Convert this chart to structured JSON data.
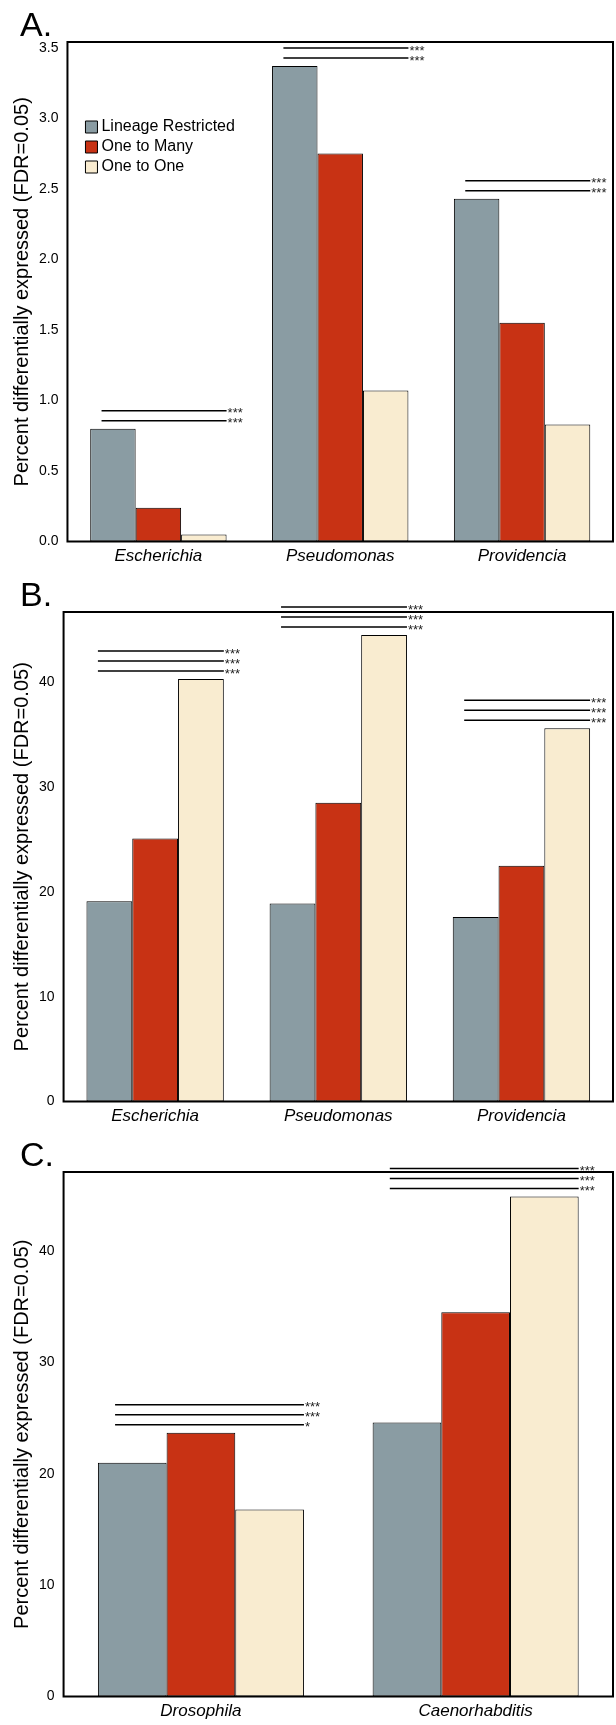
{
  "chart_data": [
    {
      "type": "bar",
      "title": "A.",
      "ylabel": "Percent differentially expressed (FDR=0.05)",
      "categories": [
        "Escherichia",
        "Pseudomonas",
        "Providencia"
      ],
      "series": [
        {
          "name": "Lineage Restricted",
          "color": "#8a9ca3",
          "values": [
            0.8,
            3.37,
            2.43
          ]
        },
        {
          "name": "One to Many",
          "color": "#c83214",
          "values": [
            0.24,
            2.75,
            1.55
          ]
        },
        {
          "name": "One to One",
          "color": "#f9ecd0",
          "values": [
            0.05,
            1.07,
            0.83
          ]
        }
      ],
      "ylim": [
        0,
        3.54
      ],
      "yticks": [
        {
          "value": 0,
          "label": "0.0"
        },
        0.5,
        {
          "value": 1,
          "label": "1.0"
        },
        1.5,
        {
          "value": 2,
          "label": "2.0"
        },
        2.5,
        {
          "value": 3,
          "label": "3.0"
        },
        3.5
      ],
      "legend": "top left",
      "grid": false,
      "annotations": [
        "***",
        "***",
        "***",
        "***",
        "***",
        "***"
      ]
    },
    {
      "type": "bar",
      "title": "B.",
      "ylabel": "Percent differentially expressed (FDR=0.05)",
      "categories": [
        "Escherichia",
        "Pseudomonas",
        "Providencia"
      ],
      "series": [
        {
          "color": "#8a9ca3",
          "values": [
            19.1,
            18.9,
            17.6
          ]
        },
        {
          "color": "#c83214",
          "values": [
            25.1,
            28.5,
            22.5
          ]
        },
        {
          "color": "#f9ecd0",
          "values": [
            40.3,
            44.5,
            35.6
          ]
        }
      ],
      "ylim": [
        0,
        46.7
      ],
      "yticks": [
        0,
        10,
        20,
        30,
        40
      ],
      "grid": false,
      "annotations": [
        "***",
        "***",
        "***",
        "***",
        "***",
        "***",
        "***",
        "***",
        "***"
      ]
    },
    {
      "type": "bar",
      "title": "C.",
      "ylabel": "Percent differentially expressed (FDR=0.05)",
      "categories": [
        "Drosophila",
        "Caenorhabditis"
      ],
      "series": [
        {
          "color": "#8a9ca3",
          "values": [
            21.0,
            24.6
          ]
        },
        {
          "color": "#c83214",
          "values": [
            23.7,
            34.5
          ]
        },
        {
          "color": "#f9ecd0",
          "values": [
            16.8,
            44.9
          ]
        }
      ],
      "ylim": [
        0,
        47.1
      ],
      "yticks": [
        0,
        10,
        20,
        30,
        40
      ],
      "grid": false,
      "annotations": [
        "***",
        "***",
        "*",
        "***",
        "***",
        "***"
      ]
    }
  ]
}
